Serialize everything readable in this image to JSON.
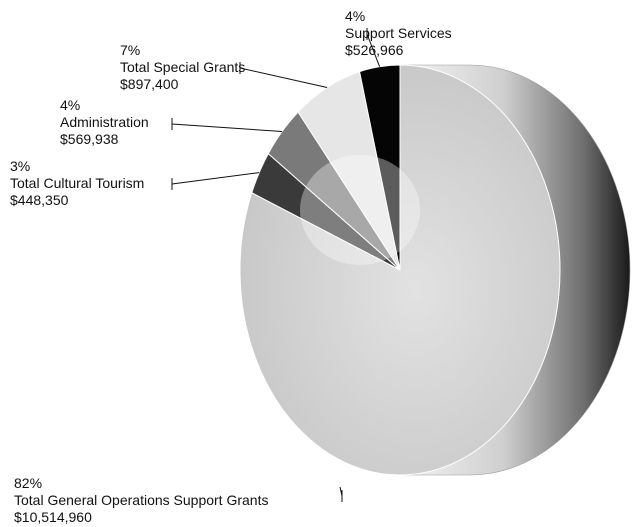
{
  "chart_data": {
    "type": "pie",
    "title": "",
    "slices": [
      {
        "label": "Total General Operations Support Grants",
        "percent": "82%",
        "amount": "$10,514,960",
        "value": 10514960,
        "color": "#cfcfcf",
        "side_color": "#8a8a8a"
      },
      {
        "label": "Total Cultural Tourism",
        "percent": "3%",
        "amount": "$448,350",
        "value": 448350,
        "color": "#3a3a3a",
        "side_color": "#222222"
      },
      {
        "label": "Administration",
        "percent": "4%",
        "amount": "$569,938",
        "value": 569938,
        "color": "#7a7a7a",
        "side_color": "#4a4a4a"
      },
      {
        "label": "Total Special Grants",
        "percent": "7%",
        "amount": "$897,400",
        "value": 897400,
        "color": "#e6e6e6",
        "side_color": "#aaaaaa"
      },
      {
        "label": "Support Services",
        "percent": "4%",
        "amount": "$526,966",
        "value": 526966,
        "color": "#050505",
        "side_color": "#000000"
      }
    ],
    "legend": "none",
    "style": "3d-pie"
  }
}
